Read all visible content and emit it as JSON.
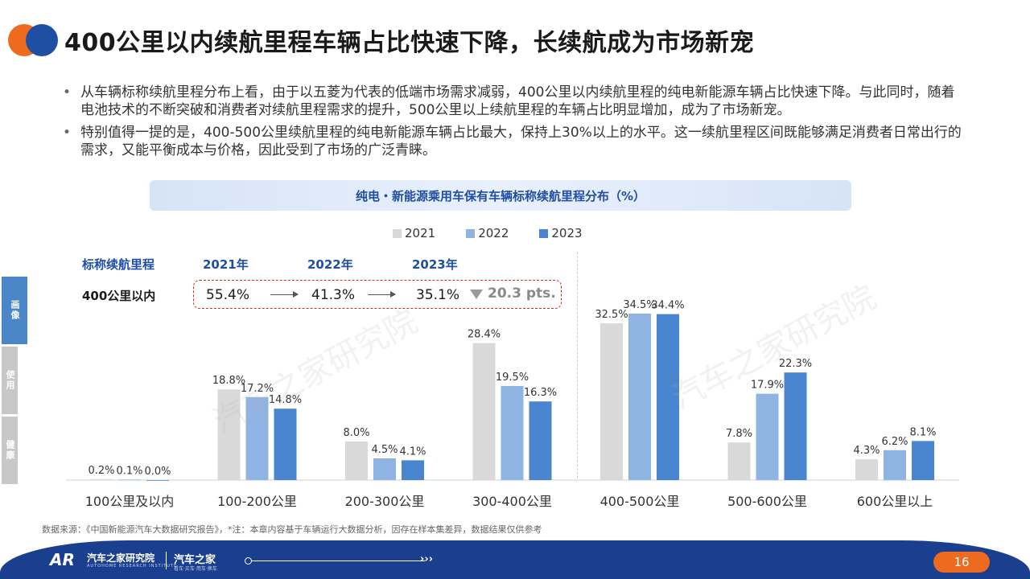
{
  "title": "400公里以内续航里程车辆占比快速下降，长续航成为市场新宠",
  "bullets": [
    "从车辆标称续航里程分布上看，由于以五菱为代表的低端市场需求减弱，400公里以内续航里程的纯电新能源车辆占比快速下降。与此同时，随着电池技术的不断突破和消费者对续航里程需求的提升，500公里以上续航里程的车辆占比明显增加，成为了市场新宠。",
    "特别值得一提的是，400-500公里续航里程的纯电新能源车辆占比最大，保持上30%以上的水平。这一续航里程区间既能够满足消费者日常出行的需求，又能平衡成本与价格，因此受到了市场的广泛青睐。"
  ],
  "side_tabs": [
    "画像",
    "使用",
    "健康"
  ],
  "info_box": {
    "header_label": "标称续航里程",
    "years": [
      "2021年",
      "2022年",
      "2023年"
    ],
    "row_label": "400公里以内",
    "values": [
      "55.4%",
      "41.3%",
      "35.1%"
    ],
    "drop_text": "20.3 pts."
  },
  "watermark": "汽车之家研究院",
  "chart_data": {
    "type": "bar",
    "title": "纯电・新能源乘用车保有车辆标称续航里程分布（%）",
    "categories": [
      "100公里及以内",
      "100-200公里",
      "200-300公里",
      "300-400公里",
      "400-500公里",
      "500-600公里",
      "600公里以上"
    ],
    "series": [
      {
        "name": "2021",
        "color": "#d9d9d9",
        "values": [
          0.2,
          18.8,
          8.0,
          28.4,
          32.5,
          7.8,
          4.3
        ]
      },
      {
        "name": "2022",
        "color": "#8fb3e3",
        "values": [
          0.1,
          17.2,
          4.5,
          19.5,
          34.5,
          17.9,
          6.2
        ]
      },
      {
        "name": "2023",
        "color": "#4a86d0",
        "values": [
          0.0,
          14.8,
          4.1,
          16.3,
          34.4,
          22.3,
          8.1
        ]
      }
    ],
    "value_suffix": "%",
    "legend_position": "top",
    "grid": false
  },
  "source": "数据来源：《中国新能源汽车大数据研究报告》，*注：本章内容基于车辆运行大数据分析，因存在样本集差异，数据结果仅供参考",
  "footer": {
    "logo": "AR",
    "institute": "汽车之家研究院",
    "institute_en": "AUTOHOME RESEARCH INSTITUTE",
    "brand": "汽车之家",
    "brand_sub": "看车·买车·用车·换车",
    "chevrons": "›››",
    "page_number": "16"
  }
}
